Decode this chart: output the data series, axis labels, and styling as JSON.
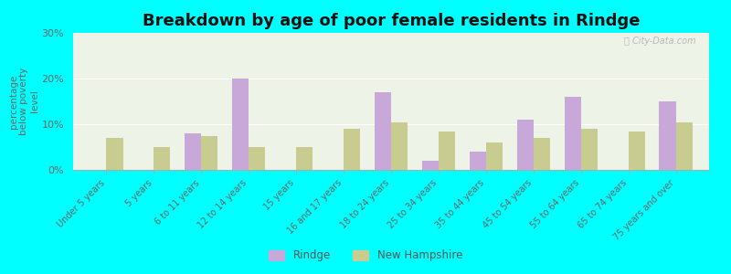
{
  "title": "Breakdown by age of poor female residents in Rindge",
  "ylabel": "percentage\nbelow poverty\nlevel",
  "categories": [
    "Under 5 years",
    "5 years",
    "6 to 11 years",
    "12 to 14 years",
    "15 years",
    "16 and 17 years",
    "18 to 24 years",
    "25 to 34 years",
    "35 to 44 years",
    "45 to 54 years",
    "55 to 64 years",
    "65 to 74 years",
    "75 years and over"
  ],
  "rindge": [
    0,
    0,
    8,
    20,
    0,
    0,
    17,
    2,
    4,
    11,
    16,
    0,
    15
  ],
  "nh": [
    7,
    5,
    7.5,
    5,
    5,
    9,
    10.5,
    8.5,
    6,
    7,
    9,
    8.5,
    10.5
  ],
  "rindge_color": "#c8a8d8",
  "nh_color": "#c8cc90",
  "ylim": [
    0,
    30
  ],
  "yticks": [
    0,
    10,
    20,
    30
  ],
  "ytick_labels": [
    "0%",
    "10%",
    "20%",
    "30%"
  ],
  "background_color": "#00ffff",
  "plot_bg_color": "#eef3e8",
  "title_fontsize": 13,
  "bar_width": 0.35,
  "legend_rindge": "Rindge",
  "legend_nh": "New Hampshire"
}
